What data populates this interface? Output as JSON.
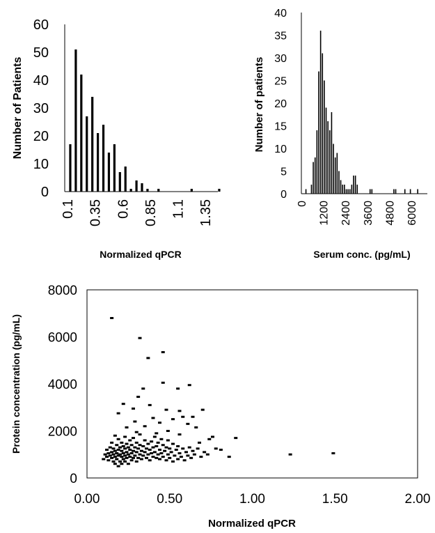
{
  "chart_data": [
    {
      "type": "bar",
      "ylabel": "Number of Patients",
      "xlabel": "Normalized qPCR",
      "ylim": [
        0,
        60
      ],
      "yticks": [
        0,
        10,
        20,
        30,
        40,
        50,
        60
      ],
      "xlim": [
        0.1,
        1.45
      ],
      "xticks": [
        "0.1",
        "0.35",
        "0.6",
        "0.85",
        "1.1",
        "1.35"
      ],
      "xtick_values": [
        0.1,
        0.35,
        0.6,
        0.85,
        1.1,
        1.35
      ],
      "bin_width": 0.05,
      "bins": [
        {
          "x": 0.125,
          "y": 17
        },
        {
          "x": 0.175,
          "y": 51
        },
        {
          "x": 0.225,
          "y": 42
        },
        {
          "x": 0.275,
          "y": 27
        },
        {
          "x": 0.325,
          "y": 34
        },
        {
          "x": 0.375,
          "y": 21
        },
        {
          "x": 0.425,
          "y": 24
        },
        {
          "x": 0.475,
          "y": 14
        },
        {
          "x": 0.525,
          "y": 17
        },
        {
          "x": 0.575,
          "y": 7
        },
        {
          "x": 0.625,
          "y": 9
        },
        {
          "x": 0.675,
          "y": 1
        },
        {
          "x": 0.725,
          "y": 4
        },
        {
          "x": 0.775,
          "y": 3
        },
        {
          "x": 0.825,
          "y": 1
        },
        {
          "x": 0.925,
          "y": 1
        },
        {
          "x": 1.225,
          "y": 1
        },
        {
          "x": 1.475,
          "y": 1
        }
      ],
      "grid": false
    },
    {
      "type": "bar",
      "ylabel": "Number of patients",
      "xlabel": "Serum conc. (pg/mL)",
      "ylim": [
        0,
        40
      ],
      "yticks": [
        0,
        5,
        10,
        15,
        20,
        25,
        30,
        35,
        40
      ],
      "xlim": [
        0,
        6800
      ],
      "xticks": [
        "0",
        "1200",
        "2400",
        "3600",
        "4800",
        "6000"
      ],
      "xtick_values": [
        0,
        1200,
        2400,
        3600,
        4800,
        6000
      ],
      "bin_width": 100,
      "bins": [
        {
          "x": 250,
          "y": 1
        },
        {
          "x": 550,
          "y": 2
        },
        {
          "x": 650,
          "y": 7
        },
        {
          "x": 750,
          "y": 8
        },
        {
          "x": 850,
          "y": 14
        },
        {
          "x": 950,
          "y": 27
        },
        {
          "x": 1050,
          "y": 36
        },
        {
          "x": 1150,
          "y": 31
        },
        {
          "x": 1250,
          "y": 25
        },
        {
          "x": 1350,
          "y": 19
        },
        {
          "x": 1450,
          "y": 16
        },
        {
          "x": 1550,
          "y": 14
        },
        {
          "x": 1650,
          "y": 18
        },
        {
          "x": 1750,
          "y": 11
        },
        {
          "x": 1850,
          "y": 8
        },
        {
          "x": 1950,
          "y": 9
        },
        {
          "x": 2050,
          "y": 5
        },
        {
          "x": 2150,
          "y": 3
        },
        {
          "x": 2250,
          "y": 2
        },
        {
          "x": 2350,
          "y": 2
        },
        {
          "x": 2450,
          "y": 1
        },
        {
          "x": 2550,
          "y": 1
        },
        {
          "x": 2650,
          "y": 1
        },
        {
          "x": 2750,
          "y": 2
        },
        {
          "x": 2850,
          "y": 4
        },
        {
          "x": 2950,
          "y": 4
        },
        {
          "x": 3050,
          "y": 2
        },
        {
          "x": 3750,
          "y": 1
        },
        {
          "x": 3850,
          "y": 1
        },
        {
          "x": 5050,
          "y": 1
        },
        {
          "x": 5150,
          "y": 1
        },
        {
          "x": 5650,
          "y": 1
        },
        {
          "x": 5950,
          "y": 1
        },
        {
          "x": 6350,
          "y": 1
        }
      ],
      "grid": false
    },
    {
      "type": "scatter",
      "xlabel": "Normalized qPCR",
      "ylabel": "Protein concentration (pg/mL)",
      "xlim": [
        0,
        2
      ],
      "ylim": [
        0,
        8000
      ],
      "xticks": [
        "0.00",
        "0.50",
        "1.00",
        "1.50",
        "2.00"
      ],
      "xtick_values": [
        0,
        0.5,
        1,
        1.5,
        2
      ],
      "yticks": [
        "0",
        "2000",
        "4000",
        "6000",
        "8000"
      ],
      "ytick_values": [
        0,
        2000,
        4000,
        6000,
        8000
      ],
      "grid": false,
      "points": [
        [
          0.15,
          6800
        ],
        [
          0.32,
          5950
        ],
        [
          0.46,
          5350
        ],
        [
          0.37,
          5100
        ],
        [
          0.46,
          4050
        ],
        [
          0.55,
          3800
        ],
        [
          0.34,
          3800
        ],
        [
          0.62,
          3950
        ],
        [
          0.31,
          3450
        ],
        [
          0.22,
          3150
        ],
        [
          0.38,
          3100
        ],
        [
          0.48,
          2900
        ],
        [
          0.28,
          2950
        ],
        [
          0.56,
          2850
        ],
        [
          0.19,
          2750
        ],
        [
          0.7,
          2900
        ],
        [
          0.64,
          2600
        ],
        [
          0.4,
          2550
        ],
        [
          0.52,
          2500
        ],
        [
          0.58,
          2600
        ],
        [
          0.29,
          2400
        ],
        [
          0.44,
          2350
        ],
        [
          0.61,
          2300
        ],
        [
          0.35,
          2200
        ],
        [
          0.66,
          2150
        ],
        [
          0.24,
          2150
        ],
        [
          0.49,
          2000
        ],
        [
          0.3,
          1950
        ],
        [
          0.42,
          1900
        ],
        [
          0.56,
          1850
        ],
        [
          0.76,
          1750
        ],
        [
          0.9,
          1700
        ],
        [
          0.74,
          1650
        ],
        [
          0.68,
          1500
        ],
        [
          0.78,
          1250
        ],
        [
          0.81,
          1200
        ],
        [
          0.86,
          900
        ],
        [
          1.23,
          1000
        ],
        [
          1.49,
          1050
        ],
        [
          0.1,
          800
        ],
        [
          0.11,
          1000
        ],
        [
          0.12,
          900
        ],
        [
          0.12,
          1200
        ],
        [
          0.13,
          750
        ],
        [
          0.13,
          1050
        ],
        [
          0.14,
          950
        ],
        [
          0.14,
          1300
        ],
        [
          0.15,
          850
        ],
        [
          0.15,
          1100
        ],
        [
          0.15,
          1500
        ],
        [
          0.16,
          700
        ],
        [
          0.16,
          1000
        ],
        [
          0.16,
          1250
        ],
        [
          0.17,
          600
        ],
        [
          0.17,
          900
        ],
        [
          0.17,
          1150
        ],
        [
          0.17,
          1800
        ],
        [
          0.18,
          800
        ],
        [
          0.18,
          1050
        ],
        [
          0.18,
          1400
        ],
        [
          0.19,
          500
        ],
        [
          0.19,
          950
        ],
        [
          0.19,
          1200
        ],
        [
          0.19,
          1650
        ],
        [
          0.2,
          700
        ],
        [
          0.2,
          1000
        ],
        [
          0.2,
          1300
        ],
        [
          0.21,
          600
        ],
        [
          0.21,
          900
        ],
        [
          0.21,
          1150
        ],
        [
          0.21,
          1500
        ],
        [
          0.22,
          800
        ],
        [
          0.22,
          1050
        ],
        [
          0.22,
          1350
        ],
        [
          0.23,
          700
        ],
        [
          0.23,
          950
        ],
        [
          0.23,
          1250
        ],
        [
          0.23,
          1750
        ],
        [
          0.24,
          850
        ],
        [
          0.24,
          1100
        ],
        [
          0.24,
          1450
        ],
        [
          0.25,
          600
        ],
        [
          0.25,
          1000
        ],
        [
          0.25,
          1300
        ],
        [
          0.26,
          900
        ],
        [
          0.26,
          1200
        ],
        [
          0.26,
          1600
        ],
        [
          0.27,
          750
        ],
        [
          0.27,
          1050
        ],
        [
          0.27,
          1400
        ],
        [
          0.28,
          850
        ],
        [
          0.28,
          1150
        ],
        [
          0.28,
          1700
        ],
        [
          0.29,
          950
        ],
        [
          0.29,
          1300
        ],
        [
          0.3,
          700
        ],
        [
          0.3,
          1100
        ],
        [
          0.3,
          1500
        ],
        [
          0.31,
          850
        ],
        [
          0.31,
          1250
        ],
        [
          0.32,
          1000
        ],
        [
          0.32,
          1400
        ],
        [
          0.32,
          1850
        ],
        [
          0.33,
          800
        ],
        [
          0.33,
          1150
        ],
        [
          0.34,
          950
        ],
        [
          0.34,
          1350
        ],
        [
          0.35,
          1100
        ],
        [
          0.35,
          1600
        ],
        [
          0.36,
          850
        ],
        [
          0.36,
          1250
        ],
        [
          0.37,
          1000
        ],
        [
          0.37,
          1450
        ],
        [
          0.38,
          750
        ],
        [
          0.38,
          1200
        ],
        [
          0.39,
          1050
        ],
        [
          0.39,
          1550
        ],
        [
          0.4,
          900
        ],
        [
          0.4,
          1300
        ],
        [
          0.41,
          1100
        ],
        [
          0.41,
          1750
        ],
        [
          0.42,
          850
        ],
        [
          0.42,
          1350
        ],
        [
          0.43,
          1000
        ],
        [
          0.43,
          1500
        ],
        [
          0.44,
          800
        ],
        [
          0.44,
          1200
        ],
        [
          0.45,
          1050
        ],
        [
          0.45,
          1650
        ],
        [
          0.46,
          900
        ],
        [
          0.46,
          1400
        ],
        [
          0.47,
          1150
        ],
        [
          0.48,
          750
        ],
        [
          0.48,
          1300
        ],
        [
          0.49,
          1000
        ],
        [
          0.49,
          1600
        ],
        [
          0.5,
          850
        ],
        [
          0.5,
          1250
        ],
        [
          0.51,
          1100
        ],
        [
          0.52,
          700
        ],
        [
          0.52,
          1450
        ],
        [
          0.53,
          950
        ],
        [
          0.54,
          1200
        ],
        [
          0.55,
          800
        ],
        [
          0.55,
          1350
        ],
        [
          0.56,
          1050
        ],
        [
          0.57,
          900
        ],
        [
          0.58,
          1250
        ],
        [
          0.59,
          750
        ],
        [
          0.6,
          1100
        ],
        [
          0.61,
          950
        ],
        [
          0.62,
          1300
        ],
        [
          0.63,
          850
        ],
        [
          0.64,
          1150
        ],
        [
          0.65,
          1000
        ],
        [
          0.67,
          1250
        ],
        [
          0.69,
          900
        ],
        [
          0.71,
          1100
        ],
        [
          0.73,
          1000
        ]
      ]
    }
  ]
}
